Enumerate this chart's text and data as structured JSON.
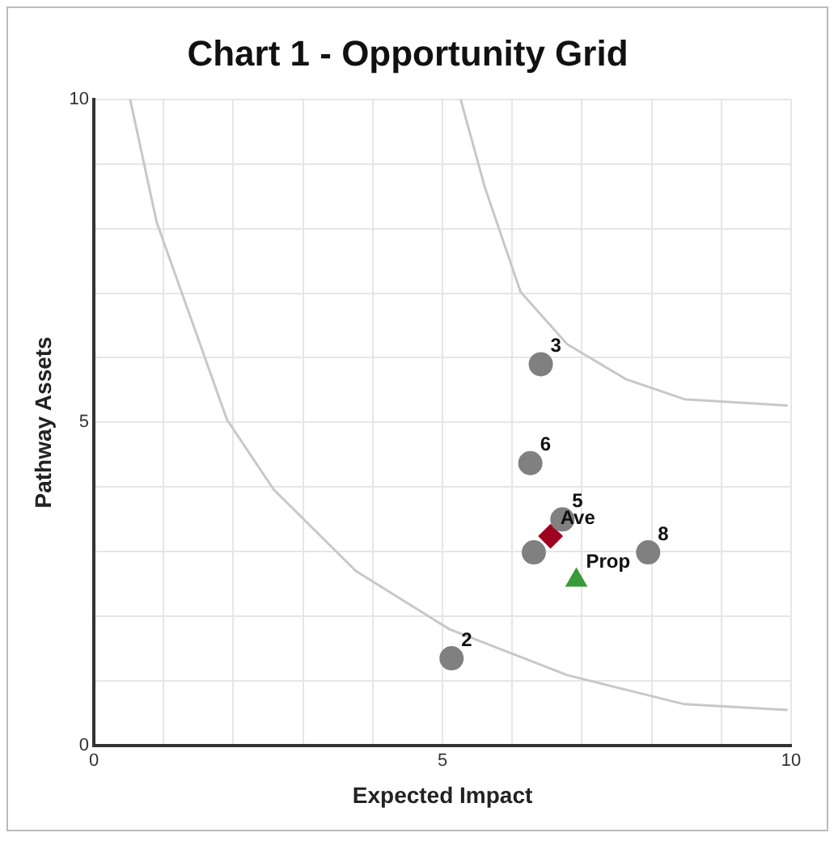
{
  "chart_data": {
    "type": "scatter",
    "title": "Chart 1 - Opportunity Grid",
    "xlabel": "Expected Impact",
    "ylabel": "Pathway Assets",
    "xlim": [
      0,
      10
    ],
    "ylim": [
      0,
      10
    ],
    "xticks": [
      0,
      {
        "value": 1,
        "label": null
      },
      {
        "value": 2,
        "label": null
      },
      {
        "value": 3,
        "label": null
      },
      {
        "value": 4,
        "label": null
      },
      5,
      {
        "value": 6,
        "label": null
      },
      {
        "value": 7,
        "label": null
      },
      {
        "value": 8,
        "label": null
      },
      {
        "value": 9,
        "label": null
      },
      10
    ],
    "yticks": [
      0,
      {
        "value": 1,
        "label": null
      },
      {
        "value": 2,
        "label": null
      },
      {
        "value": 3,
        "label": null
      },
      {
        "value": 4,
        "label": null
      },
      5,
      {
        "value": 6,
        "label": null
      },
      {
        "value": 7,
        "label": null
      },
      {
        "value": 8,
        "label": null
      },
      {
        "value": 9,
        "label": null
      },
      10
    ],
    "grid": true,
    "legend": false,
    "series": [
      {
        "type": "line",
        "color": "#c8c8c8",
        "marker": "none",
        "x": [
          0.52,
          0.9,
          1.91,
          2.58,
          3.76,
          5.1,
          6.79,
          8.47,
          9.95
        ],
        "values": [
          10,
          8.1,
          5.04,
          3.96,
          2.7,
          1.8,
          1.09,
          0.64,
          0.55
        ]
      },
      {
        "type": "line",
        "color": "#c8c8c8",
        "marker": "none",
        "x": [
          5.26,
          5.61,
          6.12,
          6.79,
          7.63,
          8.47,
          9.95
        ],
        "values": [
          10,
          8.63,
          7.02,
          6.21,
          5.67,
          5.36,
          5.26
        ]
      },
      {
        "color": "#808080",
        "marker": "circle",
        "x": [
          5.13,
          6.41,
          6.72,
          6.26,
          6.31,
          7.95
        ],
        "values": [
          1.35,
          5.9,
          3.5,
          4.37,
          2.99,
          2.99
        ]
      },
      {
        "color": "#a00020",
        "marker": "diamond",
        "x": [
          6.55
        ],
        "values": [
          3.24
        ]
      },
      {
        "color": "#3a9a3a",
        "marker": "triangle",
        "x": [
          6.92
        ],
        "values": [
          2.56
        ]
      }
    ],
    "annotations": [
      {
        "text": "2",
        "x": 5.13,
        "y": 1.35
      },
      {
        "text": "3",
        "x": 6.41,
        "y": 5.9
      },
      {
        "text": "5",
        "x": 6.72,
        "y": 3.5
      },
      {
        "text": "6",
        "x": 6.26,
        "y": 4.37
      },
      {
        "text": "8",
        "x": 7.95,
        "y": 2.99
      },
      {
        "text": "Ave",
        "x": 6.55,
        "y": 3.24
      },
      {
        "text": "Prop",
        "x": 6.92,
        "y": 2.56
      }
    ]
  }
}
